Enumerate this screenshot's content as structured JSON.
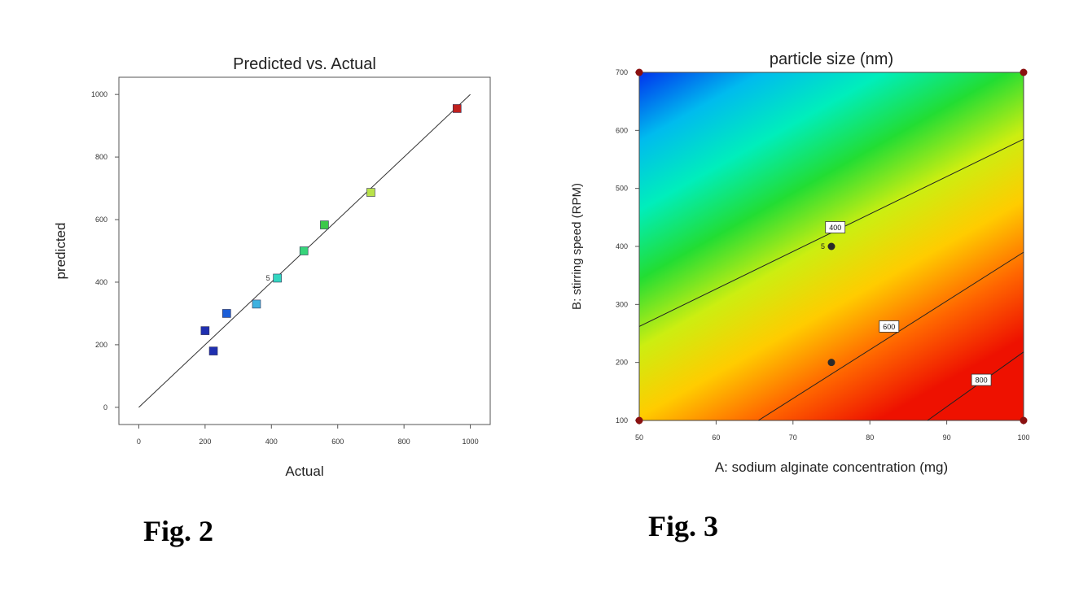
{
  "figures": [
    {
      "caption": "Fig. 2",
      "chart_data": {
        "type": "scatter",
        "title": "Predicted vs. Actual",
        "xlabel": "Actual",
        "ylabel": "predicted",
        "xlim": [
          -60,
          1060
        ],
        "ylim": [
          -55,
          1055
        ],
        "xticks": [
          0,
          200,
          400,
          600,
          800,
          1000
        ],
        "yticks": [
          0,
          200,
          400,
          600,
          800,
          1000
        ],
        "grid": false,
        "reference_line": {
          "from": [
            0,
            0
          ],
          "to": [
            1000,
            1000
          ]
        },
        "points": [
          {
            "x": 200,
            "y": 245,
            "color": "#1f2fb0"
          },
          {
            "x": 225,
            "y": 180,
            "color": "#1f2fb0"
          },
          {
            "x": 265,
            "y": 300,
            "color": "#1c5ed8"
          },
          {
            "x": 355,
            "y": 330,
            "color": "#3fb2e0"
          },
          {
            "x": 418,
            "y": 413,
            "color": "#33d6c0",
            "label": "5"
          },
          {
            "x": 498,
            "y": 500,
            "color": "#37d47a"
          },
          {
            "x": 560,
            "y": 583,
            "color": "#3cc94a"
          },
          {
            "x": 700,
            "y": 687,
            "color": "#b9e24a"
          },
          {
            "x": 960,
            "y": 955,
            "color": "#c0201e"
          }
        ]
      }
    },
    {
      "caption": "Fig. 3",
      "chart_data": {
        "type": "heatmap",
        "title": "particle size (nm)",
        "xlabel": "A: sodium alginate concentration (mg)",
        "ylabel": "B: stirring speed (RPM)",
        "xlim": [
          50,
          100
        ],
        "ylim": [
          100,
          700
        ],
        "xticks": [
          50,
          60,
          70,
          80,
          90,
          100
        ],
        "yticks": [
          100,
          200,
          300,
          400,
          500,
          600,
          700
        ],
        "color_scale": [
          "#0033ee",
          "#00bbee",
          "#00eebb",
          "#22dd33",
          "#ccee11",
          "#ffcc00",
          "#ff6600",
          "#ee1100"
        ],
        "contours": [
          {
            "level": "400",
            "from": [
              50,
              262
            ],
            "to": [
              100,
              585
            ],
            "label_at": [
              75.5,
              433
            ]
          },
          {
            "level": "600",
            "from": [
              65.5,
              100
            ],
            "to": [
              100,
              390
            ],
            "label_at": [
              82.5,
              262
            ]
          },
          {
            "level": "800",
            "from": [
              87.5,
              100
            ],
            "to": [
              100,
              218
            ],
            "label_at": [
              94.5,
              170
            ]
          }
        ],
        "design_points": [
          {
            "x": 75,
            "y": 400,
            "label": "5",
            "color": "#2a2a2a"
          },
          {
            "x": 75,
            "y": 200,
            "color": "#2a2a2a"
          },
          {
            "x": 50,
            "y": 700,
            "color": "#8a1010"
          },
          {
            "x": 100,
            "y": 700,
            "color": "#8a1010"
          },
          {
            "x": 50,
            "y": 100,
            "color": "#8a1010"
          },
          {
            "x": 100,
            "y": 100,
            "color": "#8a1010"
          }
        ]
      }
    }
  ]
}
